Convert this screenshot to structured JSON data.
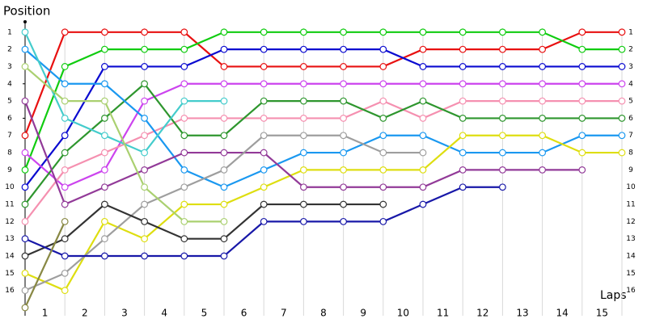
{
  "chart_data": {
    "type": "line",
    "y_label": "Position",
    "x_label": "Laps",
    "x": [
      0,
      1,
      2,
      3,
      4,
      5,
      6,
      7,
      8,
      9,
      10,
      11,
      12,
      13,
      14,
      15
    ],
    "xlim": [
      0,
      15
    ],
    "xticks": [
      0,
      1,
      2,
      3,
      4,
      5,
      6,
      7,
      8,
      9,
      10,
      11,
      12,
      13,
      14,
      15
    ],
    "lap_labels": [
      "1",
      "2",
      "3",
      "4",
      "5",
      "6",
      "7",
      "8",
      "9",
      "10",
      "11",
      "12",
      "13",
      "14",
      "15"
    ],
    "ylim": [
      17,
      0.4
    ],
    "yticks": [
      1,
      2,
      3,
      4,
      5,
      6,
      7,
      8,
      9,
      10,
      11,
      12,
      13,
      14,
      15,
      16
    ],
    "grid": true,
    "series": [
      {
        "color": "#e81010",
        "values": [
          7,
          1,
          1,
          1,
          1,
          3,
          3,
          3,
          3,
          3,
          2,
          2,
          2,
          2,
          1,
          1
        ]
      },
      {
        "color": "#10cc10",
        "values": [
          9,
          3,
          2,
          2,
          2,
          1,
          1,
          1,
          1,
          1,
          1,
          1,
          1,
          1,
          2,
          2
        ]
      },
      {
        "color": "#0a0ad0",
        "values": [
          10,
          7,
          3,
          3,
          3,
          2,
          2,
          2,
          2,
          2,
          3,
          3,
          3,
          3,
          3,
          3
        ]
      },
      {
        "color": "#cc44ee",
        "values": [
          8,
          10,
          9,
          5,
          4,
          4,
          4,
          4,
          4,
          4,
          4,
          4,
          4,
          4,
          4,
          4
        ]
      },
      {
        "color": "#f590b0",
        "values": [
          12,
          9,
          8,
          7,
          6,
          6,
          6,
          6,
          6,
          5,
          6,
          5,
          5,
          5,
          5,
          5
        ]
      },
      {
        "color": "#2e962e",
        "values": [
          11,
          8,
          6,
          4,
          7,
          7,
          5,
          5,
          5,
          6,
          5,
          6,
          6,
          6,
          6,
          6
        ]
      },
      {
        "color": "#1a98f0",
        "values": [
          2,
          4,
          4,
          6,
          9,
          10,
          9,
          8,
          8,
          7,
          7,
          8,
          8,
          8,
          7,
          7
        ]
      },
      {
        "color": "#44cccc",
        "values": [
          1,
          6,
          7,
          8,
          5,
          5,
          null,
          null,
          null,
          null,
          null,
          null,
          null,
          null,
          null,
          null
        ]
      },
      {
        "color": "#dede10",
        "values": [
          15,
          16,
          12,
          13,
          11,
          11,
          10,
          9,
          9,
          9,
          9,
          7,
          7,
          7,
          8,
          8
        ]
      },
      {
        "color": "#923a98",
        "values": [
          5,
          11,
          10,
          9,
          8,
          8,
          8,
          10,
          10,
          10,
          10,
          9,
          9,
          9,
          9,
          null
        ]
      },
      {
        "color": "#9e9e9e",
        "values": [
          16,
          15,
          13,
          11,
          10,
          9,
          7,
          7,
          7,
          8,
          8,
          null,
          null,
          null,
          null,
          null
        ]
      },
      {
        "color": "#aad070",
        "values": [
          3,
          5,
          5,
          10,
          12,
          12,
          null,
          null,
          null,
          null,
          null,
          null,
          null,
          null,
          null,
          null
        ]
      },
      {
        "color": "#333333",
        "values": [
          14,
          13,
          11,
          12,
          13,
          13,
          11,
          11,
          11,
          11,
          null,
          null,
          null,
          null,
          null,
          null
        ]
      },
      {
        "color": "#1818a8",
        "values": [
          13,
          14,
          14,
          14,
          14,
          14,
          12,
          12,
          12,
          12,
          11,
          10,
          10,
          null,
          null,
          null
        ]
      },
      {
        "color": "#888844",
        "values": [
          17,
          12,
          null,
          null,
          null,
          null,
          null,
          null,
          null,
          null,
          null,
          null,
          null,
          null,
          null,
          null
        ]
      }
    ]
  }
}
